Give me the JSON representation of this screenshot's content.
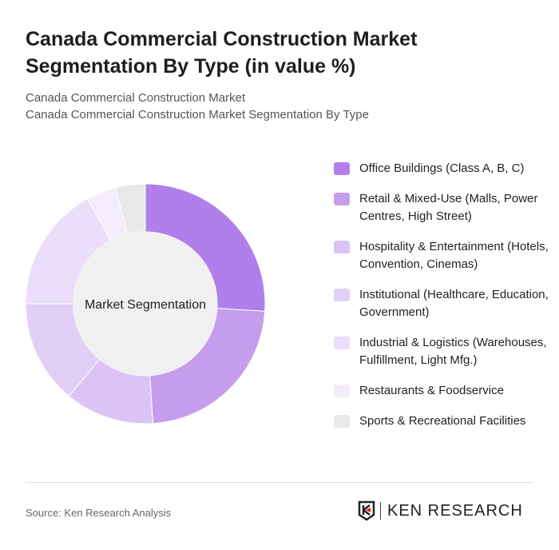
{
  "title": "Canada Commercial Construction Market Segmentation By Type (in value %)",
  "subtitle1": "Canada Commercial Construction Market",
  "subtitle2": "Canada Commercial Construction Market Segmentation By Type",
  "source": "Source: Ken Research Analysis",
  "logo_text": "KEN RESEARCH",
  "chart_data": {
    "type": "pie",
    "donut": true,
    "center_label": "Market Segmentation",
    "legend_position": "right",
    "categories": [
      "Office Buildings (Class A, B, C)",
      "Retail & Mixed-Use (Malls, Power Centres, High Street)",
      "Hospitality & Entertainment (Hotels, Convention, Cinemas)",
      "Institutional (Healthcare, Education, Government)",
      "Industrial & Logistics (Warehouses, Fulfillment, Light Mfg.)",
      "Restaurants & Foodservice",
      "Sports & Recreational Facilities"
    ],
    "values": [
      26,
      23,
      12,
      14,
      17,
      4,
      4
    ],
    "colors": [
      "#b07fea",
      "#c69ded",
      "#dbc3f5",
      "#e2cff7",
      "#ebdefa",
      "#f3ecfc",
      "#e8e8e8"
    ]
  }
}
